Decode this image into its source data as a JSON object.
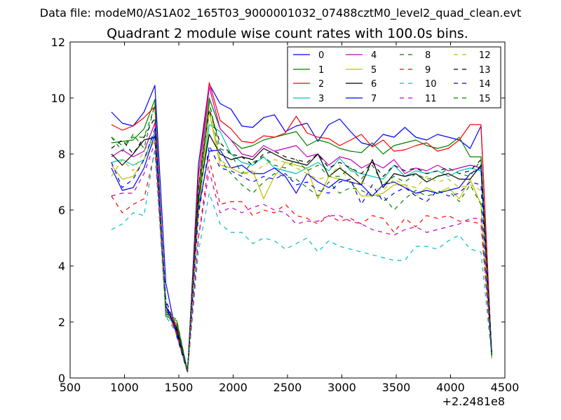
{
  "header": {
    "suptitle": "Data file: modeM0/AS1A02_165T03_9000001032_07488cztM0_level2_quad_clean.evt"
  },
  "chart_data": {
    "type": "line",
    "title": "Quadrant 2 module wise count rates with 100.0s bins.",
    "xlabel": "",
    "ylabel": "",
    "x_offset_label": "+2.2481e8",
    "xlim": [
      500,
      4500
    ],
    "ylim": [
      0,
      12
    ],
    "xticks": [
      500,
      1000,
      1500,
      2000,
      2500,
      3000,
      3500,
      4000,
      4500
    ],
    "yticks": [
      0,
      2,
      4,
      6,
      8,
      10,
      12
    ],
    "grid": false,
    "legend_position": "top-right",
    "legend_columns": 4,
    "x": [
      880,
      980,
      1080,
      1180,
      1280,
      1380,
      1480,
      1580,
      1680,
      1780,
      1880,
      1980,
      2080,
      2180,
      2280,
      2380,
      2480,
      2580,
      2680,
      2780,
      2880,
      2980,
      3080,
      3180,
      3280,
      3380,
      3480,
      3580,
      3680,
      3780,
      3880,
      3980,
      4080,
      4180,
      4280,
      4380
    ],
    "series": [
      {
        "name": "0",
        "color": "#0000ff",
        "dash": "solid",
        "values": [
          9.5,
          9.1,
          9.0,
          9.5,
          10.45,
          3.4,
          1.5,
          0.2,
          7.6,
          10.5,
          9.8,
          9.6,
          9.0,
          8.95,
          9.3,
          9.4,
          8.8,
          9.0,
          9.1,
          8.45,
          9.05,
          9.25,
          8.8,
          8.4,
          8.3,
          8.7,
          8.6,
          8.95,
          8.6,
          8.5,
          8.7,
          8.6,
          8.5,
          8.2,
          9.0,
          0.7
        ]
      },
      {
        "name": "1",
        "color": "#008000",
        "dash": "solid",
        "values": [
          8.4,
          8.45,
          8.5,
          8.9,
          9.95,
          2.2,
          2.05,
          0.25,
          6.3,
          10.0,
          8.9,
          8.5,
          8.2,
          8.3,
          8.5,
          8.6,
          8.7,
          8.8,
          8.3,
          8.5,
          8.4,
          8.2,
          8.1,
          8.05,
          8.4,
          8.0,
          8.3,
          8.4,
          8.5,
          8.3,
          8.2,
          8.3,
          8.6,
          7.9,
          7.9,
          0.7
        ]
      },
      {
        "name": "2",
        "color": "#ff0000",
        "dash": "solid",
        "values": [
          9.05,
          8.85,
          9.0,
          9.3,
          9.7,
          2.5,
          1.9,
          0.2,
          7.2,
          10.55,
          9.2,
          8.9,
          8.45,
          8.4,
          8.65,
          8.6,
          8.75,
          9.35,
          8.75,
          8.6,
          8.55,
          8.3,
          8.5,
          8.7,
          8.25,
          8.5,
          8.1,
          8.15,
          8.3,
          8.4,
          8.1,
          8.2,
          8.5,
          9.05,
          9.05,
          0.7
        ]
      },
      {
        "name": "3",
        "color": "#00bfbf",
        "dash": "solid",
        "values": [
          7.7,
          7.8,
          7.6,
          7.8,
          8.8,
          2.3,
          1.8,
          0.3,
          6.0,
          9.05,
          8.8,
          8.0,
          7.7,
          7.6,
          7.9,
          7.5,
          7.4,
          7.3,
          7.5,
          7.7,
          7.4,
          7.85,
          7.4,
          7.3,
          7.2,
          7.1,
          7.6,
          7.2,
          7.4,
          7.3,
          7.4,
          7.2,
          7.4,
          7.5,
          7.4,
          0.8
        ]
      },
      {
        "name": "4",
        "color": "#bf00bf",
        "dash": "solid",
        "values": [
          7.9,
          8.15,
          7.9,
          8.1,
          9.1,
          2.6,
          1.7,
          0.25,
          6.7,
          10.4,
          8.9,
          8.5,
          8.0,
          7.9,
          8.3,
          8.1,
          8.2,
          8.3,
          7.9,
          8.0,
          7.6,
          7.9,
          7.8,
          7.5,
          7.7,
          7.5,
          7.8,
          7.3,
          7.5,
          7.4,
          7.6,
          7.4,
          7.5,
          7.6,
          7.5,
          0.7
        ]
      },
      {
        "name": "5",
        "color": "#bfbf00",
        "dash": "solid",
        "values": [
          7.6,
          7.1,
          7.2,
          7.8,
          8.5,
          2.5,
          1.6,
          0.3,
          5.8,
          9.5,
          7.6,
          7.5,
          7.3,
          7.4,
          6.4,
          7.2,
          7.7,
          7.6,
          7.5,
          6.4,
          7.2,
          7.1,
          7.0,
          6.5,
          6.5,
          6.6,
          6.9,
          6.9,
          6.5,
          6.8,
          6.6,
          6.8,
          6.4,
          7.1,
          6.2,
          0.7
        ]
      },
      {
        "name": "6",
        "color": "#000000",
        "dash": "solid",
        "values": [
          8.0,
          7.6,
          8.0,
          8.5,
          8.6,
          2.5,
          1.8,
          0.25,
          6.4,
          8.7,
          8.0,
          7.8,
          7.9,
          7.8,
          8.2,
          8.0,
          7.8,
          7.7,
          7.6,
          8.0,
          7.2,
          7.5,
          7.2,
          6.9,
          7.8,
          6.8,
          7.3,
          7.2,
          7.3,
          7.0,
          7.2,
          7.3,
          7.1,
          7.1,
          7.6,
          0.8
        ]
      },
      {
        "name": "7",
        "color": "#0000ff",
        "dash": "solid",
        "values": [
          7.5,
          6.7,
          6.8,
          7.5,
          8.7,
          2.6,
          1.6,
          0.25,
          6.0,
          8.1,
          8.15,
          7.5,
          7.6,
          7.3,
          7.3,
          7.5,
          7.2,
          6.6,
          7.3,
          7.0,
          6.8,
          7.1,
          7.0,
          6.9,
          6.5,
          6.9,
          7.0,
          6.8,
          6.6,
          6.7,
          6.6,
          6.7,
          6.8,
          7.3,
          7.5,
          0.8
        ]
      },
      {
        "name": "8",
        "color": "#008000",
        "dash": "dashed",
        "values": [
          8.6,
          8.1,
          8.7,
          8.2,
          9.8,
          2.3,
          2.1,
          0.25,
          6.1,
          9.9,
          7.8,
          7.3,
          6.9,
          6.6,
          7.0,
          7.3,
          7.2,
          7.1,
          6.8,
          6.5,
          7.0,
          6.6,
          6.8,
          6.7,
          6.5,
          6.5,
          6.0,
          6.4,
          6.7,
          6.5,
          6.6,
          6.7,
          6.3,
          6.9,
          6.2,
          0.8
        ]
      },
      {
        "name": "9",
        "color": "#ff0000",
        "dash": "dashed",
        "values": [
          6.5,
          5.9,
          6.2,
          6.4,
          8.1,
          2.4,
          1.7,
          0.25,
          5.0,
          7.8,
          6.2,
          6.3,
          6.3,
          5.8,
          6.0,
          5.9,
          6.2,
          5.8,
          5.7,
          5.5,
          5.8,
          5.6,
          5.7,
          5.5,
          5.8,
          5.7,
          5.2,
          5.7,
          5.4,
          5.8,
          5.7,
          5.8,
          5.6,
          5.6,
          5.5,
          0.7
        ]
      },
      {
        "name": "10",
        "color": "#00bfbf",
        "dash": "dashed",
        "values": [
          5.3,
          5.5,
          5.9,
          5.8,
          8.2,
          2.2,
          1.6,
          0.2,
          4.5,
          6.6,
          5.5,
          5.2,
          5.2,
          4.8,
          5.0,
          4.9,
          4.6,
          4.8,
          5.0,
          4.5,
          4.9,
          4.7,
          4.6,
          4.5,
          4.4,
          4.3,
          4.2,
          4.2,
          4.7,
          4.7,
          4.6,
          4.9,
          5.1,
          4.6,
          4.5,
          0.7
        ]
      },
      {
        "name": "11",
        "color": "#bf00bf",
        "dash": "dashed",
        "values": [
          6.5,
          6.6,
          6.6,
          7.3,
          8.4,
          2.4,
          1.6,
          0.2,
          5.0,
          7.4,
          5.9,
          6.1,
          5.9,
          6.1,
          6.2,
          6.0,
          5.9,
          5.5,
          5.6,
          5.6,
          5.8,
          5.8,
          5.6,
          5.5,
          5.3,
          5.2,
          5.1,
          5.3,
          5.4,
          5.2,
          5.3,
          5.4,
          5.5,
          5.7,
          5.7,
          0.7
        ]
      },
      {
        "name": "12",
        "color": "#bfbf00",
        "dash": "dashed",
        "values": [
          7.2,
          7.8,
          7.4,
          8.1,
          8.7,
          2.5,
          1.5,
          0.2,
          5.9,
          9.6,
          7.8,
          7.5,
          7.3,
          7.3,
          7.6,
          7.8,
          7.7,
          7.5,
          7.3,
          7.1,
          7.2,
          7.6,
          6.9,
          7.0,
          6.8,
          6.7,
          7.1,
          6.9,
          6.8,
          7.2,
          7.0,
          7.1,
          6.8,
          6.9,
          6.7,
          0.7
        ]
      },
      {
        "name": "13",
        "color": "#000000",
        "dash": "dashed",
        "values": [
          8.2,
          8.5,
          8.0,
          8.6,
          9.3,
          2.8,
          1.7,
          0.25,
          6.8,
          9.6,
          8.4,
          8.0,
          7.9,
          7.6,
          8.0,
          8.1,
          7.9,
          7.8,
          7.7,
          8.0,
          7.5,
          7.7,
          7.5,
          7.3,
          7.7,
          7.2,
          7.6,
          7.4,
          7.5,
          7.3,
          7.4,
          7.5,
          7.3,
          7.4,
          7.8,
          0.8
        ]
      },
      {
        "name": "14",
        "color": "#0000ff",
        "dash": "dashed",
        "values": [
          7.7,
          6.8,
          7.1,
          7.8,
          8.9,
          2.7,
          1.6,
          0.25,
          5.8,
          8.3,
          7.5,
          7.4,
          7.2,
          7.0,
          7.2,
          7.1,
          7.3,
          6.9,
          7.0,
          6.7,
          6.6,
          7.0,
          7.1,
          6.2,
          6.9,
          6.3,
          6.6,
          6.8,
          6.5,
          6.3,
          6.7,
          6.5,
          6.6,
          7.0,
          6.9,
          0.8
        ]
      },
      {
        "name": "15",
        "color": "#008000",
        "dash": "dashed",
        "values": [
          8.6,
          8.3,
          8.6,
          8.6,
          9.7,
          2.4,
          1.9,
          0.25,
          6.7,
          9.8,
          8.2,
          8.0,
          7.3,
          7.7,
          7.9,
          7.6,
          7.5,
          7.8,
          7.4,
          7.6,
          7.2,
          7.2,
          7.5,
          7.1,
          7.6,
          6.9,
          7.2,
          7.0,
          7.3,
          7.1,
          7.2,
          7.5,
          7.3,
          7.2,
          7.8,
          0.8
        ]
      }
    ]
  }
}
